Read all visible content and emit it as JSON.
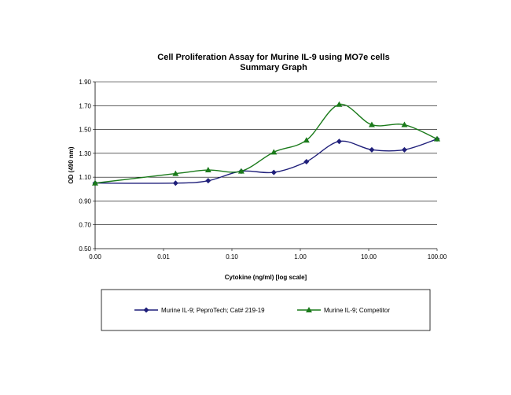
{
  "chart_data": {
    "type": "line",
    "title": "Cell Proliferation Assay for Murine IL-9 using MO7e cells",
    "subtitle": "Summary Graph",
    "xlabel": "Cytokine (ng/ml) [log scale]",
    "ylabel": "OD (490 nm)",
    "x_scale": "log",
    "x_ticks": [
      "0.00",
      "0.01",
      "0.10",
      "1.00",
      "10.00",
      "100.00"
    ],
    "y_ticks": [
      "0.50",
      "0.70",
      "0.90",
      "1.10",
      "1.30",
      "1.50",
      "1.70",
      "1.90"
    ],
    "xlim": [
      0.001,
      100
    ],
    "ylim": [
      0.5,
      1.9
    ],
    "grid": "horizontal",
    "legend_position": "bottom",
    "series": [
      {
        "name": "Murine IL-9; PeproTech; Cat# 219-19",
        "color": "#1f1f7a",
        "marker": "diamond",
        "x": [
          0.001,
          0.015,
          0.045,
          0.137,
          0.41,
          1.23,
          3.7,
          11.1,
          33.3,
          100
        ],
        "values": [
          1.05,
          1.05,
          1.07,
          1.15,
          1.14,
          1.23,
          1.4,
          1.33,
          1.33,
          1.42
        ]
      },
      {
        "name": "Murine IL-9; Competitor",
        "color": "#1a7a1a",
        "marker": "triangle",
        "x": [
          0.001,
          0.015,
          0.045,
          0.137,
          0.41,
          1.23,
          3.7,
          11.1,
          33.3,
          100
        ],
        "values": [
          1.05,
          1.13,
          1.16,
          1.15,
          1.31,
          1.41,
          1.71,
          1.54,
          1.54,
          1.42
        ]
      }
    ]
  }
}
